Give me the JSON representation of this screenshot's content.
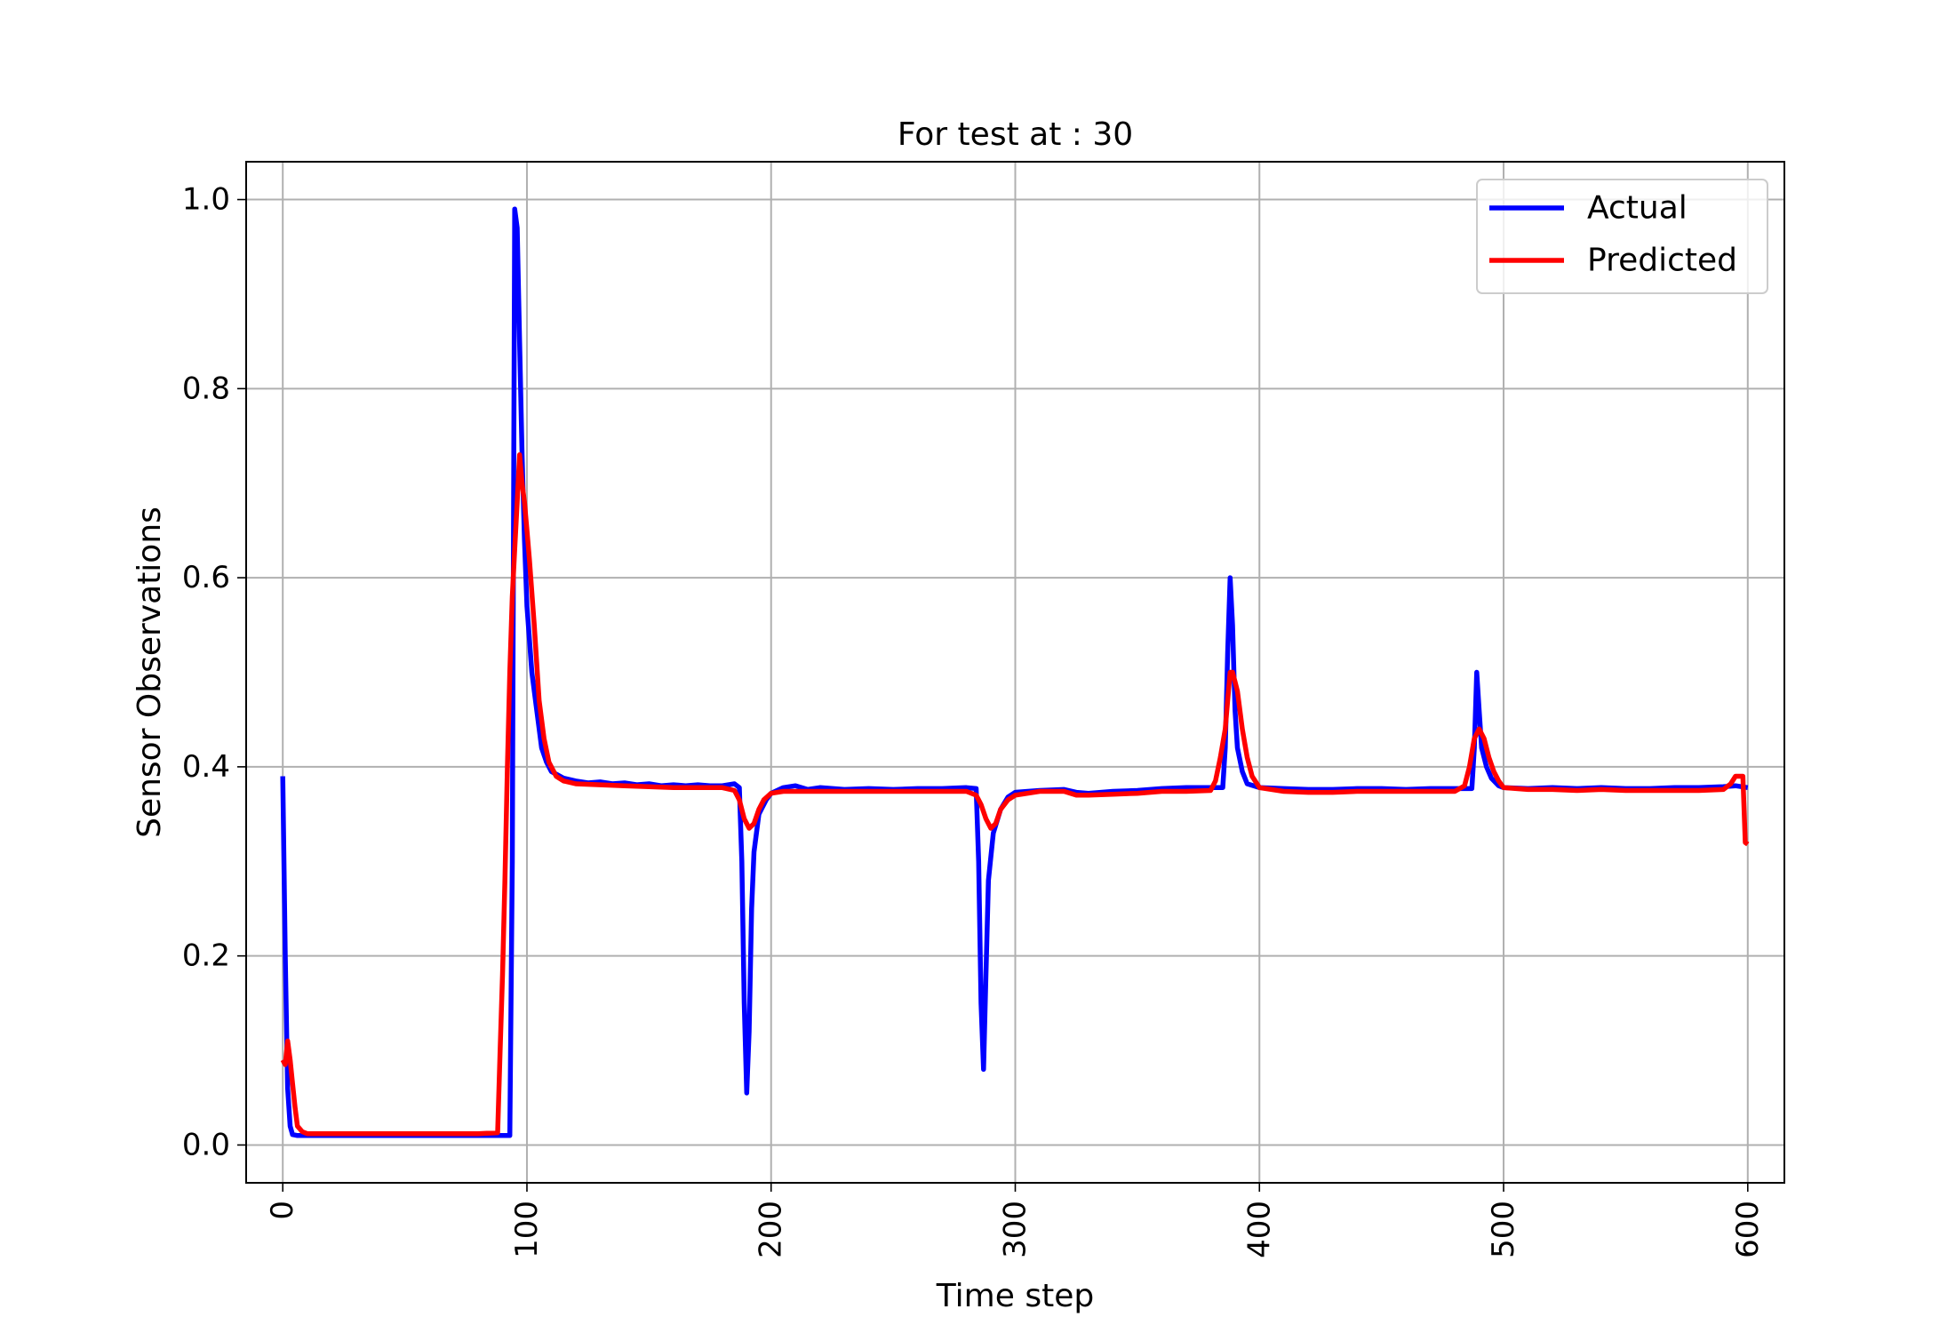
{
  "chart_data": {
    "type": "line",
    "title": "For test at : 30",
    "xlabel": "Time step",
    "ylabel": "Sensor Observations",
    "xlim": [
      -15,
      615
    ],
    "ylim": [
      -0.04,
      1.04
    ],
    "xticks": [
      0,
      100,
      200,
      300,
      400,
      500,
      600
    ],
    "xtick_labels": [
      "0",
      "100",
      "200",
      "300",
      "400",
      "500",
      "600"
    ],
    "xtick_rotation": 90,
    "yticks": [
      0.0,
      0.2,
      0.4,
      0.6,
      0.8,
      1.0
    ],
    "ytick_labels": [
      "0.0",
      "0.2",
      "0.4",
      "0.6",
      "0.8",
      "1.0"
    ],
    "grid": true,
    "legend_position": "top-right",
    "series": [
      {
        "name": "Actual",
        "color": "#0000ff",
        "points": [
          [
            0,
            0.39
          ],
          [
            1,
            0.2
          ],
          [
            2,
            0.06
          ],
          [
            3,
            0.02
          ],
          [
            4,
            0.011
          ],
          [
            6,
            0.01
          ],
          [
            20,
            0.01
          ],
          [
            40,
            0.01
          ],
          [
            60,
            0.01
          ],
          [
            80,
            0.01
          ],
          [
            93,
            0.01
          ],
          [
            94,
            0.3
          ],
          [
            95,
            0.99
          ],
          [
            96,
            0.97
          ],
          [
            97,
            0.85
          ],
          [
            98,
            0.73
          ],
          [
            99,
            0.64
          ],
          [
            100,
            0.57
          ],
          [
            102,
            0.5
          ],
          [
            104,
            0.46
          ],
          [
            106,
            0.42
          ],
          [
            108,
            0.405
          ],
          [
            110,
            0.395
          ],
          [
            115,
            0.388
          ],
          [
            120,
            0.385
          ],
          [
            125,
            0.383
          ],
          [
            130,
            0.384
          ],
          [
            135,
            0.382
          ],
          [
            140,
            0.383
          ],
          [
            145,
            0.381
          ],
          [
            150,
            0.382
          ],
          [
            155,
            0.38
          ],
          [
            160,
            0.381
          ],
          [
            165,
            0.38
          ],
          [
            170,
            0.381
          ],
          [
            175,
            0.38
          ],
          [
            180,
            0.38
          ],
          [
            185,
            0.382
          ],
          [
            187,
            0.378
          ],
          [
            188,
            0.3
          ],
          [
            189,
            0.15
          ],
          [
            190,
            0.055
          ],
          [
            191,
            0.12
          ],
          [
            192,
            0.25
          ],
          [
            193,
            0.31
          ],
          [
            195,
            0.35
          ],
          [
            198,
            0.365
          ],
          [
            200,
            0.372
          ],
          [
            205,
            0.378
          ],
          [
            210,
            0.38
          ],
          [
            215,
            0.376
          ],
          [
            220,
            0.378
          ],
          [
            230,
            0.376
          ],
          [
            240,
            0.377
          ],
          [
            250,
            0.376
          ],
          [
            260,
            0.377
          ],
          [
            270,
            0.377
          ],
          [
            280,
            0.378
          ],
          [
            284,
            0.377
          ],
          [
            285,
            0.3
          ],
          [
            286,
            0.15
          ],
          [
            287,
            0.08
          ],
          [
            288,
            0.18
          ],
          [
            289,
            0.28
          ],
          [
            291,
            0.33
          ],
          [
            294,
            0.355
          ],
          [
            297,
            0.368
          ],
          [
            300,
            0.373
          ],
          [
            310,
            0.375
          ],
          [
            320,
            0.376
          ],
          [
            325,
            0.373
          ],
          [
            330,
            0.372
          ],
          [
            340,
            0.374
          ],
          [
            350,
            0.375
          ],
          [
            360,
            0.377
          ],
          [
            370,
            0.378
          ],
          [
            380,
            0.378
          ],
          [
            385,
            0.378
          ],
          [
            386,
            0.42
          ],
          [
            387,
            0.52
          ],
          [
            388,
            0.6
          ],
          [
            389,
            0.55
          ],
          [
            390,
            0.46
          ],
          [
            391,
            0.42
          ],
          [
            393,
            0.395
          ],
          [
            395,
            0.382
          ],
          [
            400,
            0.378
          ],
          [
            410,
            0.377
          ],
          [
            420,
            0.376
          ],
          [
            430,
            0.376
          ],
          [
            440,
            0.377
          ],
          [
            450,
            0.377
          ],
          [
            460,
            0.376
          ],
          [
            470,
            0.377
          ],
          [
            480,
            0.377
          ],
          [
            487,
            0.377
          ],
          [
            488,
            0.42
          ],
          [
            489,
            0.5
          ],
          [
            490,
            0.46
          ],
          [
            491,
            0.42
          ],
          [
            493,
            0.4
          ],
          [
            495,
            0.388
          ],
          [
            498,
            0.38
          ],
          [
            500,
            0.378
          ],
          [
            510,
            0.377
          ],
          [
            520,
            0.378
          ],
          [
            530,
            0.377
          ],
          [
            540,
            0.378
          ],
          [
            550,
            0.377
          ],
          [
            560,
            0.377
          ],
          [
            570,
            0.378
          ],
          [
            580,
            0.378
          ],
          [
            590,
            0.379
          ],
          [
            595,
            0.38
          ],
          [
            600,
            0.378
          ]
        ]
      },
      {
        "name": "Predicted",
        "color": "#ff0000",
        "points": [
          [
            0,
            0.09
          ],
          [
            1,
            0.085
          ],
          [
            2,
            0.11
          ],
          [
            3,
            0.09
          ],
          [
            4,
            0.065
          ],
          [
            5,
            0.04
          ],
          [
            6,
            0.02
          ],
          [
            8,
            0.014
          ],
          [
            10,
            0.012
          ],
          [
            20,
            0.012
          ],
          [
            40,
            0.012
          ],
          [
            60,
            0.012
          ],
          [
            80,
            0.012
          ],
          [
            88,
            0.013
          ],
          [
            89,
            0.1
          ],
          [
            90,
            0.18
          ],
          [
            91,
            0.28
          ],
          [
            92,
            0.4
          ],
          [
            93,
            0.5
          ],
          [
            94,
            0.58
          ],
          [
            95,
            0.63
          ],
          [
            96,
            0.68
          ],
          [
            97,
            0.73
          ],
          [
            98,
            0.7
          ],
          [
            99,
            0.68
          ],
          [
            100,
            0.65
          ],
          [
            101,
            0.62
          ],
          [
            103,
            0.55
          ],
          [
            105,
            0.47
          ],
          [
            107,
            0.43
          ],
          [
            109,
            0.405
          ],
          [
            112,
            0.39
          ],
          [
            115,
            0.385
          ],
          [
            120,
            0.382
          ],
          [
            130,
            0.381
          ],
          [
            140,
            0.38
          ],
          [
            150,
            0.379
          ],
          [
            160,
            0.378
          ],
          [
            170,
            0.378
          ],
          [
            180,
            0.378
          ],
          [
            185,
            0.375
          ],
          [
            187,
            0.365
          ],
          [
            189,
            0.345
          ],
          [
            191,
            0.335
          ],
          [
            193,
            0.34
          ],
          [
            195,
            0.355
          ],
          [
            197,
            0.365
          ],
          [
            200,
            0.372
          ],
          [
            205,
            0.374
          ],
          [
            210,
            0.374
          ],
          [
            220,
            0.374
          ],
          [
            230,
            0.374
          ],
          [
            240,
            0.374
          ],
          [
            250,
            0.374
          ],
          [
            260,
            0.374
          ],
          [
            270,
            0.374
          ],
          [
            280,
            0.374
          ],
          [
            284,
            0.37
          ],
          [
            286,
            0.36
          ],
          [
            288,
            0.345
          ],
          [
            290,
            0.335
          ],
          [
            292,
            0.34
          ],
          [
            294,
            0.355
          ],
          [
            297,
            0.365
          ],
          [
            300,
            0.37
          ],
          [
            310,
            0.374
          ],
          [
            320,
            0.374
          ],
          [
            325,
            0.37
          ],
          [
            330,
            0.37
          ],
          [
            340,
            0.371
          ],
          [
            350,
            0.372
          ],
          [
            360,
            0.374
          ],
          [
            370,
            0.374
          ],
          [
            380,
            0.375
          ],
          [
            382,
            0.385
          ],
          [
            384,
            0.41
          ],
          [
            386,
            0.44
          ],
          [
            387,
            0.47
          ],
          [
            388,
            0.5
          ],
          [
            389,
            0.5
          ],
          [
            390,
            0.49
          ],
          [
            391,
            0.48
          ],
          [
            393,
            0.44
          ],
          [
            395,
            0.41
          ],
          [
            397,
            0.39
          ],
          [
            400,
            0.378
          ],
          [
            410,
            0.374
          ],
          [
            420,
            0.373
          ],
          [
            430,
            0.373
          ],
          [
            440,
            0.374
          ],
          [
            450,
            0.374
          ],
          [
            460,
            0.374
          ],
          [
            470,
            0.374
          ],
          [
            480,
            0.374
          ],
          [
            484,
            0.38
          ],
          [
            486,
            0.4
          ],
          [
            488,
            0.43
          ],
          [
            490,
            0.44
          ],
          [
            492,
            0.43
          ],
          [
            494,
            0.41
          ],
          [
            496,
            0.395
          ],
          [
            498,
            0.385
          ],
          [
            500,
            0.378
          ],
          [
            510,
            0.376
          ],
          [
            520,
            0.376
          ],
          [
            530,
            0.375
          ],
          [
            540,
            0.376
          ],
          [
            550,
            0.375
          ],
          [
            560,
            0.375
          ],
          [
            570,
            0.375
          ],
          [
            580,
            0.375
          ],
          [
            590,
            0.376
          ],
          [
            593,
            0.382
          ],
          [
            595,
            0.39
          ],
          [
            597,
            0.39
          ],
          [
            598,
            0.39
          ],
          [
            599,
            0.32
          ],
          [
            600,
            0.318
          ]
        ]
      }
    ]
  }
}
